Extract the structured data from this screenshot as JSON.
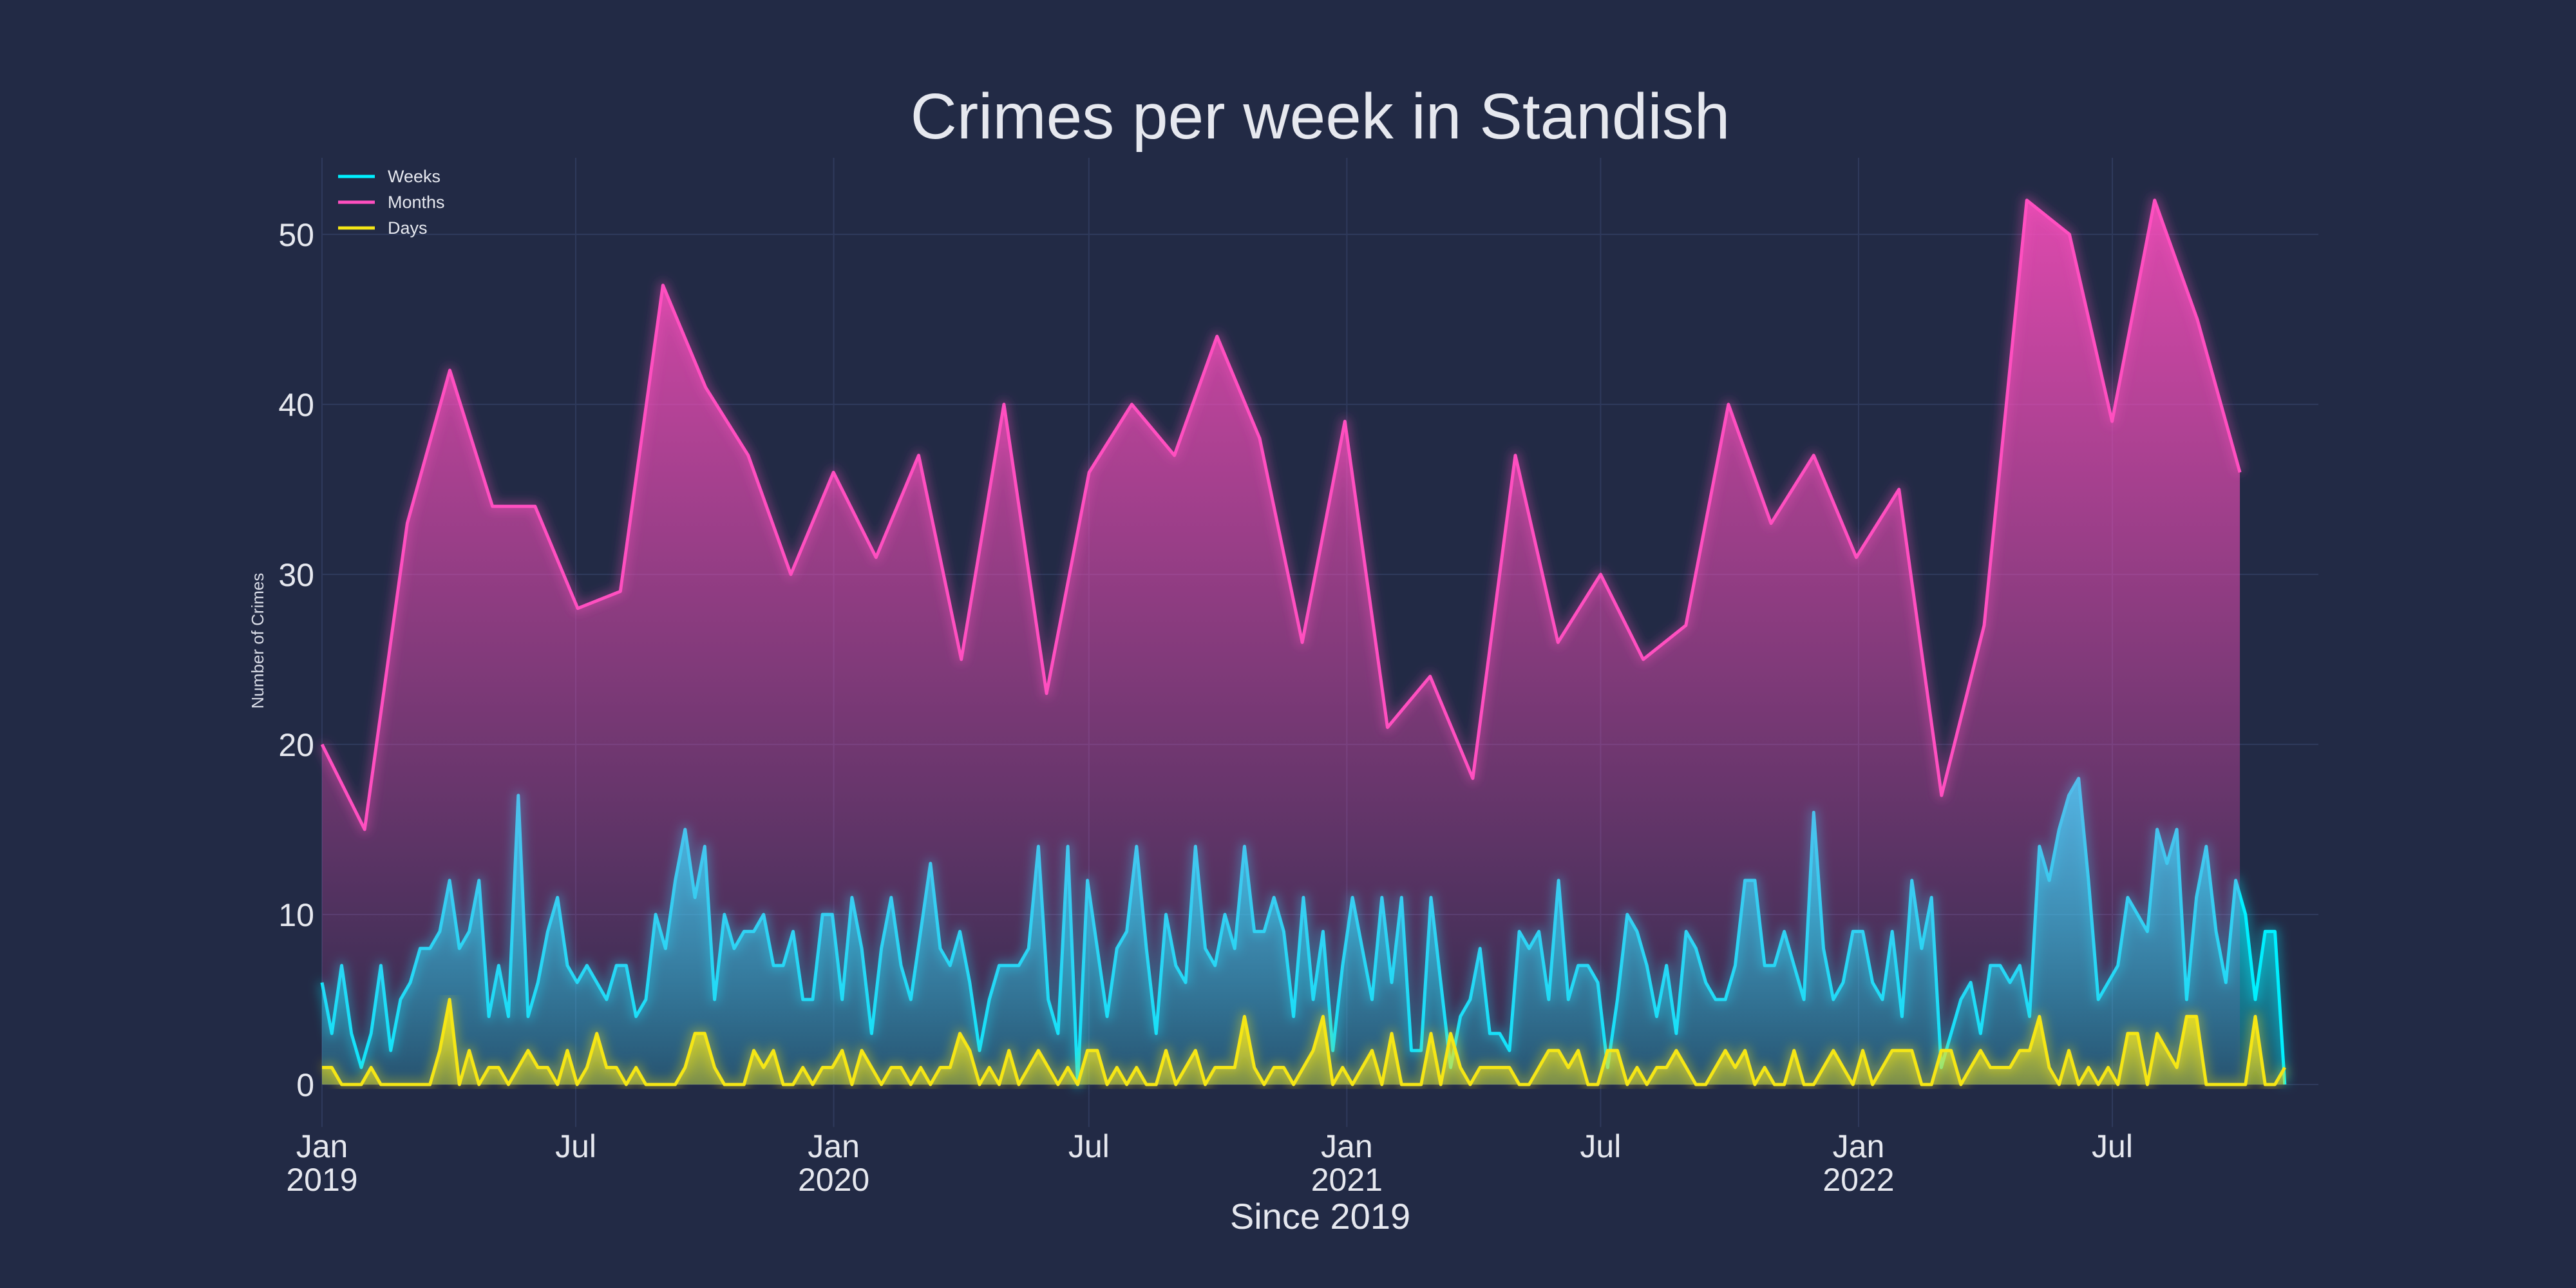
{
  "chart_data": {
    "type": "area",
    "title": "Crimes per week in Standish",
    "xlabel": "Since 2019",
    "ylabel": "Number of Crimes",
    "xlim": [
      "2019-01-01",
      "2022-11-25"
    ],
    "ylim": [
      -2.5,
      54.5
    ],
    "yticks": [
      0,
      10,
      20,
      30,
      40,
      50
    ],
    "xticks": [
      {
        "date": "2019-01-01",
        "label": "Jan",
        "year": "2019"
      },
      {
        "date": "2019-07-01",
        "label": "Jul",
        "year": ""
      },
      {
        "date": "2020-01-01",
        "label": "Jan",
        "year": "2020"
      },
      {
        "date": "2020-07-01",
        "label": "Jul",
        "year": ""
      },
      {
        "date": "2021-01-01",
        "label": "Jan",
        "year": "2021"
      },
      {
        "date": "2021-07-01",
        "label": "Jul",
        "year": ""
      },
      {
        "date": "2022-01-01",
        "label": "Jan",
        "year": "2022"
      },
      {
        "date": "2022-07-01",
        "label": "Jul",
        "year": ""
      }
    ],
    "grid": true,
    "legend_position": "top-left",
    "series": [
      {
        "name": "Weeks",
        "color": "#00f0ff",
        "start": "2019-01-01",
        "step_days": 7,
        "values": [
          6,
          3,
          7,
          3,
          1,
          3,
          7,
          2,
          5,
          6,
          8,
          8,
          9,
          12,
          8,
          9,
          12,
          4,
          7,
          4,
          17,
          4,
          6,
          9,
          11,
          7,
          6,
          7,
          6,
          5,
          7,
          7,
          4,
          5,
          10,
          8,
          12,
          15,
          11,
          14,
          5,
          10,
          8,
          9,
          9,
          10,
          7,
          7,
          9,
          5,
          5,
          10,
          10,
          5,
          11,
          8,
          3,
          8,
          11,
          7,
          5,
          9,
          13,
          8,
          7,
          9,
          6,
          2,
          5,
          7,
          7,
          7,
          8,
          14,
          5,
          3,
          14,
          0,
          12,
          8,
          4,
          8,
          9,
          14,
          8,
          3,
          10,
          7,
          6,
          14,
          8,
          7,
          10,
          8,
          14,
          9,
          9,
          11,
          9,
          4,
          11,
          5,
          9,
          2,
          7,
          11,
          8,
          5,
          11,
          6,
          11,
          2,
          2,
          11,
          6,
          1,
          4,
          5,
          8,
          3,
          3,
          2,
          9,
          8,
          9,
          5,
          12,
          5,
          7,
          7,
          6,
          1,
          5,
          10,
          9,
          7,
          4,
          7,
          3,
          9,
          8,
          6,
          5,
          5,
          7,
          12,
          12,
          7,
          7,
          9,
          7,
          5,
          16,
          8,
          5,
          6,
          9,
          9,
          6,
          5,
          9,
          4,
          12,
          8,
          11,
          1,
          3,
          5,
          6,
          3,
          7,
          7,
          6,
          7,
          4,
          14,
          12,
          15,
          17,
          18,
          12,
          5,
          6,
          7,
          11,
          10,
          9,
          15,
          13,
          15,
          5,
          11,
          14,
          9,
          6,
          12,
          10,
          5,
          9,
          9,
          0
        ]
      },
      {
        "name": "Months",
        "color": "#ff4fc0",
        "start": "2019-01-01",
        "step_days": 30.4,
        "values": [
          20,
          15,
          33,
          42,
          34,
          34,
          28,
          29,
          47,
          41,
          37,
          30,
          36,
          31,
          37,
          25,
          40,
          23,
          36,
          40,
          37,
          44,
          38,
          26,
          39,
          21,
          24,
          18,
          37,
          26,
          30,
          25,
          27,
          40,
          33,
          37,
          31,
          35,
          17,
          27,
          52,
          50,
          39,
          52,
          45,
          36
        ]
      },
      {
        "name": "Days",
        "color": "#f5e616",
        "start": "2019-01-01",
        "step_days": 7,
        "values": [
          1,
          1,
          0,
          0,
          0,
          1,
          0,
          0,
          0,
          0,
          0,
          0,
          2,
          5,
          0,
          2,
          0,
          1,
          1,
          0,
          1,
          2,
          1,
          1,
          0,
          2,
          0,
          1,
          3,
          1,
          1,
          0,
          1,
          0,
          0,
          0,
          0,
          1,
          3,
          3,
          1,
          0,
          0,
          0,
          2,
          1,
          2,
          0,
          0,
          1,
          0,
          1,
          1,
          2,
          0,
          2,
          1,
          0,
          1,
          1,
          0,
          1,
          0,
          1,
          1,
          3,
          2,
          0,
          1,
          0,
          2,
          0,
          1,
          2,
          1,
          0,
          1,
          0,
          2,
          2,
          0,
          1,
          0,
          1,
          0,
          0,
          2,
          0,
          1,
          2,
          0,
          1,
          1,
          1,
          4,
          1,
          0,
          1,
          1,
          0,
          1,
          2,
          4,
          0,
          1,
          0,
          1,
          2,
          0,
          3,
          0,
          0,
          0,
          3,
          0,
          3,
          1,
          0,
          1,
          1,
          1,
          1,
          0,
          0,
          1,
          2,
          2,
          1,
          2,
          0,
          0,
          2,
          2,
          0,
          1,
          0,
          1,
          1,
          2,
          1,
          0,
          0,
          1,
          2,
          1,
          2,
          0,
          1,
          0,
          0,
          2,
          0,
          0,
          1,
          2,
          1,
          0,
          2,
          0,
          1,
          2,
          2,
          2,
          0,
          0,
          2,
          2,
          0,
          1,
          2,
          1,
          1,
          1,
          2,
          2,
          4,
          1,
          0,
          2,
          0,
          1,
          0,
          1,
          0,
          3,
          3,
          0,
          3,
          2,
          1,
          4,
          4,
          0,
          0,
          0,
          0,
          0,
          4,
          0,
          0,
          1
        ]
      }
    ]
  }
}
